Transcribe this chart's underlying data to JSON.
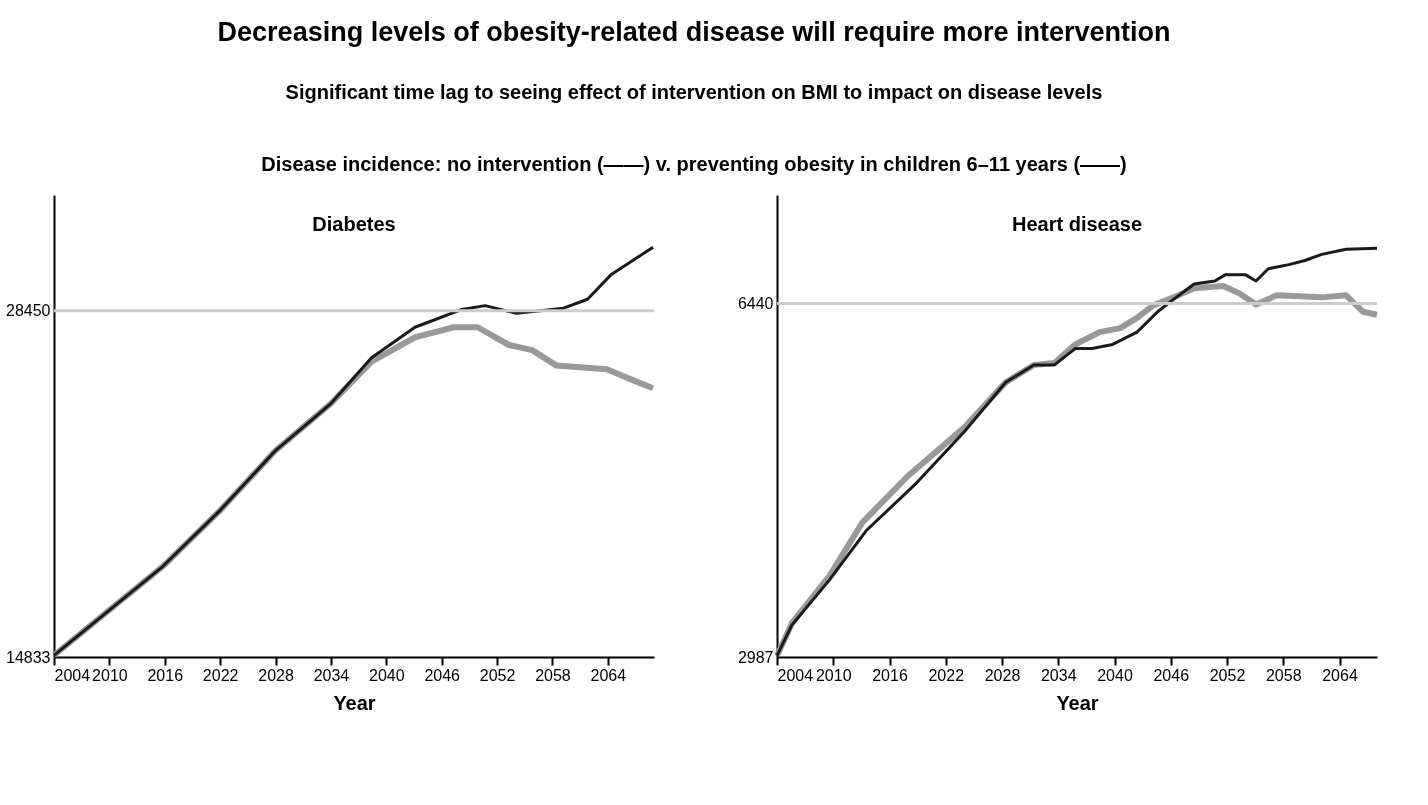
{
  "chart_data": [
    {
      "type": "other",
      "title": "Decreasing levels of obesity-related disease will require more intervention",
      "subtitle": "Significant time lag to seeing effect of intervention on BMI to impact on disease levels",
      "annotations": [
        "Disease incidence: no intervention (——) v. preventing obesity in children 6–11 years (——)"
      ]
    },
    {
      "type": "line",
      "title": "Diabetes",
      "xlabel": "Year",
      "xlim": [
        2004,
        2069
      ],
      "xticks": [
        2004,
        2010,
        2016,
        2022,
        2028,
        2034,
        2040,
        2046,
        2052,
        2058,
        2064
      ],
      "ylim": [
        14833,
        33000
      ],
      "yticks": [
        14833,
        28450
      ],
      "grid": false,
      "ref_lines": [
        {
          "axis": "y",
          "value": 28450,
          "label": null,
          "color": "#cccccc"
        }
      ],
      "series": [
        {
          "color": "#999999",
          "x": [
            2004,
            2009.9,
            2015.8,
            2022,
            2028,
            2034,
            2038.4,
            2043.1,
            2047.3,
            2049.9,
            2053.3,
            2055.8,
            2058.4,
            2063.9,
            2066.5,
            2068.9
          ],
          "values": [
            14900,
            16650,
            18400,
            20600,
            22950,
            24800,
            26450,
            27400,
            27800,
            27800,
            27100,
            26900,
            26300,
            26150,
            25750,
            25400
          ]
        },
        {
          "color": "#1a1a1a",
          "x": [
            2004,
            2009.9,
            2015.8,
            2022,
            2028,
            2034,
            2038.4,
            2043.1,
            2048.2,
            2050.7,
            2054.1,
            2059.2,
            2061.8,
            2064.3,
            2068.9
          ],
          "values": [
            14900,
            16650,
            18400,
            20600,
            22950,
            24800,
            26600,
            27800,
            28500,
            28650,
            28350,
            28550,
            28900,
            29850,
            30950
          ]
        }
      ]
    },
    {
      "type": "line",
      "title": "Heart disease",
      "xlabel": "Year",
      "xlim": [
        2004,
        2068
      ],
      "xticks": [
        2004,
        2010,
        2016,
        2022,
        2028,
        2034,
        2040,
        2046,
        2052,
        2058,
        2064
      ],
      "ylim": [
        2987,
        7500
      ],
      "yticks": [
        2987,
        6440
      ],
      "grid": false,
      "ref_lines": [
        {
          "axis": "y",
          "value": 6440,
          "label": null,
          "color": "#cccccc"
        }
      ],
      "series": [
        {
          "color": "#999999",
          "x": [
            2004,
            2005.6,
            2009.6,
            2013.1,
            2017.9,
            2024,
            2028.4,
            2031.4,
            2033.6,
            2035.8,
            2038.4,
            2040.6,
            2042.4,
            2044.1,
            2046.3,
            2048.5,
            2051.6,
            2053.3,
            2055.1,
            2057.3,
            2062.1,
            2064.7,
            2066.5,
            2068
          ],
          "values": [
            3000,
            3320,
            3780,
            4300,
            4750,
            5230,
            5670,
            5840,
            5860,
            6040,
            6160,
            6200,
            6300,
            6420,
            6500,
            6590,
            6610,
            6540,
            6430,
            6520,
            6500,
            6520,
            6360,
            6330
          ]
        },
        {
          "color": "#1a1a1a",
          "x": [
            2004,
            2005.6,
            2009.6,
            2013.5,
            2018.7,
            2024,
            2028.4,
            2031.4,
            2033.6,
            2035.8,
            2037.6,
            2039.8,
            2042.4,
            2044.6,
            2046.3,
            2048.5,
            2050.7,
            2051.8,
            2054,
            2055.1,
            2056.4,
            2058.6,
            2060.3,
            2062.1,
            2064.7,
            2068
          ],
          "values": [
            3000,
            3300,
            3740,
            4220,
            4670,
            5190,
            5670,
            5840,
            5840,
            6000,
            6000,
            6040,
            6160,
            6360,
            6480,
            6630,
            6660,
            6720,
            6720,
            6660,
            6780,
            6820,
            6860,
            6920,
            6970,
            6980
          ]
        }
      ]
    }
  ]
}
